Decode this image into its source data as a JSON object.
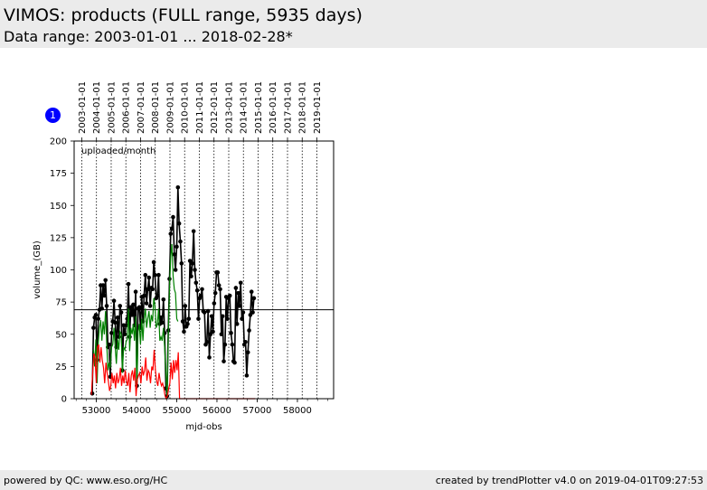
{
  "header": {
    "title": "VIMOS: products (FULL range, 5935 days)",
    "subtitle": "Data range: 2003-01-01 ... 2018-02-28*"
  },
  "footer": {
    "left": "powered by QC: www.eso.org/HC",
    "right": "created by trendPlotter v4.0 on 2019-04-01T09:27:53"
  },
  "marker": {
    "label": "1",
    "color": "#0000ff"
  },
  "chart_data": {
    "type": "line",
    "annotation": "uploaded/month",
    "xlabel": "mjd-obs",
    "ylabel": "volume_(GB)",
    "xlim": [
      52450,
      58900
    ],
    "ylim": [
      0,
      200
    ],
    "grid": "vertical dotted lines at year boundaries",
    "x_ticks": [
      53000,
      54000,
      55000,
      56000,
      57000,
      58000
    ],
    "x_tick_labels": [
      "53000",
      "54000",
      "55000",
      "56000",
      "57000",
      "58000"
    ],
    "y_ticks": [
      0,
      25,
      50,
      75,
      100,
      125,
      150,
      175,
      200
    ],
    "y_tick_labels": [
      "0",
      "25",
      "50",
      "75",
      "100",
      "125",
      "150",
      "175",
      "200"
    ],
    "reference_line": 69,
    "top_axis": {
      "ticks": [
        52640,
        53005,
        53371,
        53736,
        54101,
        54466,
        54832,
        55197,
        55562,
        55927,
        56293,
        56658,
        57023,
        57388,
        57754,
        58119,
        58484
      ],
      "labels": [
        "2003-01-01",
        "2004-01-01",
        "2005-01-01",
        "2006-01-01",
        "2007-01-01",
        "2008-01-01",
        "2009-01-01",
        "2010-01-01",
        "2011-01-01",
        "2012-01-01",
        "2013-01-01",
        "2014-01-01",
        "2015-01-01",
        "2016-01-01",
        "2017-01-01",
        "2018-01-01",
        "2019-01-01"
      ]
    },
    "series": [
      {
        "color": "#000000",
        "marker": "dot",
        "points": [
          [
            52900,
            4
          ],
          [
            52930,
            55
          ],
          [
            52960,
            63
          ],
          [
            52990,
            65
          ],
          [
            53020,
            30
          ],
          [
            53050,
            62
          ],
          [
            53080,
            69
          ],
          [
            53110,
            88
          ],
          [
            53140,
            70
          ],
          [
            53170,
            88
          ],
          [
            53200,
            80
          ],
          [
            53230,
            92
          ],
          [
            53260,
            72
          ],
          [
            53290,
            40
          ],
          [
            53320,
            42
          ],
          [
            53350,
            17
          ],
          [
            53380,
            51
          ],
          [
            53410,
            60
          ],
          [
            53440,
            76
          ],
          [
            53470,
            59
          ],
          [
            53500,
            40
          ],
          [
            53530,
            63
          ],
          [
            53560,
            48
          ],
          [
            53590,
            72
          ],
          [
            53620,
            67
          ],
          [
            53650,
            22
          ],
          [
            53680,
            57
          ],
          [
            53710,
            50
          ],
          [
            53740,
            57
          ],
          [
            53770,
            62
          ],
          [
            53800,
            89
          ],
          [
            53830,
            48
          ],
          [
            53860,
            71
          ],
          [
            53890,
            65
          ],
          [
            53920,
            73
          ],
          [
            53950,
            57
          ],
          [
            53980,
            83
          ],
          [
            54010,
            10
          ],
          [
            54040,
            70
          ],
          [
            54070,
            71
          ],
          [
            54100,
            55
          ],
          [
            54130,
            79
          ],
          [
            54160,
            60
          ],
          [
            54190,
            80
          ],
          [
            54220,
            96
          ],
          [
            54250,
            74
          ],
          [
            54280,
            85
          ],
          [
            54310,
            94
          ],
          [
            54340,
            72
          ],
          [
            54370,
            86
          ],
          [
            54400,
            85
          ],
          [
            54430,
            106
          ],
          [
            54460,
            96
          ],
          [
            54490,
            78
          ],
          [
            54520,
            80
          ],
          [
            54550,
            96
          ],
          [
            54580,
            58
          ],
          [
            54610,
            63
          ],
          [
            54640,
            59
          ],
          [
            54670,
            77
          ],
          [
            54700,
            51
          ],
          [
            54730,
            8
          ],
          [
            54760,
            2
          ],
          [
            54790,
            53
          ],
          [
            54820,
            93
          ],
          [
            54850,
            128
          ],
          [
            54880,
            132
          ],
          [
            54910,
            141
          ],
          [
            54940,
            112
          ],
          [
            54970,
            100
          ],
          [
            55000,
            118
          ],
          [
            55030,
            164
          ],
          [
            55060,
            136
          ],
          [
            55090,
            122
          ],
          [
            55120,
            105
          ],
          [
            55150,
            60
          ],
          [
            55180,
            52
          ],
          [
            55210,
            72
          ],
          [
            55240,
            56
          ],
          [
            55270,
            58
          ],
          [
            55300,
            62
          ],
          [
            55330,
            107
          ],
          [
            55360,
            95
          ],
          [
            55390,
            105
          ],
          [
            55420,
            130
          ],
          [
            55450,
            100
          ],
          [
            55480,
            90
          ],
          [
            55510,
            84
          ],
          [
            55540,
            62
          ],
          [
            55570,
            78
          ],
          [
            55600,
            80
          ],
          [
            55630,
            85
          ],
          [
            55660,
            68
          ],
          [
            55690,
            67
          ],
          [
            55720,
            42
          ],
          [
            55750,
            44
          ],
          [
            55780,
            68
          ],
          [
            55810,
            32
          ],
          [
            55840,
            50
          ],
          [
            55870,
            64
          ],
          [
            55900,
            52
          ],
          [
            55930,
            74
          ],
          [
            55960,
            82
          ],
          [
            55990,
            98
          ],
          [
            56020,
            98
          ],
          [
            56050,
            88
          ],
          [
            56080,
            85
          ],
          [
            56110,
            50
          ],
          [
            56140,
            64
          ],
          [
            56170,
            29
          ],
          [
            56200,
            42
          ],
          [
            56230,
            79
          ],
          [
            56260,
            62
          ],
          [
            56290,
            78
          ],
          [
            56320,
            80
          ],
          [
            56350,
            51
          ],
          [
            56380,
            42
          ],
          [
            56410,
            29
          ],
          [
            56440,
            28
          ],
          [
            56470,
            86
          ],
          [
            56500,
            58
          ],
          [
            56530,
            82
          ],
          [
            56560,
            72
          ],
          [
            56590,
            90
          ],
          [
            56620,
            62
          ],
          [
            56650,
            67
          ],
          [
            56680,
            42
          ],
          [
            56710,
            44
          ],
          [
            56740,
            18
          ],
          [
            56770,
            36
          ],
          [
            56800,
            53
          ],
          [
            56830,
            65
          ],
          [
            56860,
            83
          ],
          [
            56890,
            67
          ],
          [
            56920,
            78
          ]
        ]
      },
      {
        "color": "#008000",
        "marker": "none",
        "points": [
          [
            52930,
            38
          ],
          [
            52960,
            25
          ],
          [
            52990,
            46
          ],
          [
            53020,
            12
          ],
          [
            53050,
            44
          ],
          [
            53080,
            55
          ],
          [
            53110,
            61
          ],
          [
            53140,
            45
          ],
          [
            53170,
            60
          ],
          [
            53200,
            50
          ],
          [
            53230,
            68
          ],
          [
            53260,
            44
          ],
          [
            53290,
            22
          ],
          [
            53320,
            28
          ],
          [
            53350,
            24
          ],
          [
            53380,
            40
          ],
          [
            53410,
            42
          ],
          [
            53440,
            55
          ],
          [
            53470,
            40
          ],
          [
            53500,
            27
          ],
          [
            53530,
            46
          ],
          [
            53560,
            38
          ],
          [
            53590,
            52
          ],
          [
            53620,
            50
          ],
          [
            53650,
            20
          ],
          [
            53680,
            40
          ],
          [
            53710,
            38
          ],
          [
            53740,
            44
          ],
          [
            53770,
            46
          ],
          [
            53800,
            70
          ],
          [
            53830,
            37
          ],
          [
            53860,
            55
          ],
          [
            53890,
            50
          ],
          [
            53920,
            58
          ],
          [
            53950,
            45
          ],
          [
            53980,
            64
          ],
          [
            54010,
            8
          ],
          [
            54040,
            52
          ],
          [
            54070,
            58
          ],
          [
            54100,
            42
          ],
          [
            54130,
            62
          ],
          [
            54160,
            45
          ],
          [
            54190,
            62
          ],
          [
            54220,
            70
          ],
          [
            54250,
            55
          ],
          [
            54280,
            62
          ],
          [
            54310,
            68
          ],
          [
            54340,
            55
          ],
          [
            54370,
            65
          ],
          [
            54400,
            60
          ],
          [
            54430,
            78
          ],
          [
            54460,
            72
          ],
          [
            54490,
            55
          ],
          [
            54520,
            58
          ],
          [
            54550,
            70
          ],
          [
            54580,
            45
          ],
          [
            54610,
            48
          ],
          [
            54640,
            45
          ],
          [
            54670,
            55
          ],
          [
            54700,
            40
          ],
          [
            54760,
            2
          ],
          [
            54790,
            48
          ],
          [
            54820,
            85
          ],
          [
            54850,
            110
          ],
          [
            54880,
            120
          ],
          [
            54910,
            95
          ],
          [
            54940,
            85
          ],
          [
            54970,
            82
          ],
          [
            55000,
            62
          ],
          [
            55030,
            60
          ]
        ]
      },
      {
        "color": "#ff0000",
        "marker": "none",
        "points": [
          [
            52880,
            3
          ],
          [
            52910,
            20
          ],
          [
            52940,
            35
          ],
          [
            52970,
            32
          ],
          [
            53000,
            12
          ],
          [
            53030,
            40
          ],
          [
            53060,
            42
          ],
          [
            53090,
            28
          ],
          [
            53120,
            40
          ],
          [
            53150,
            30
          ],
          [
            53180,
            24
          ],
          [
            53210,
            12
          ],
          [
            53240,
            28
          ],
          [
            53270,
            20
          ],
          [
            53300,
            14
          ],
          [
            53330,
            6
          ],
          [
            53360,
            10
          ],
          [
            53390,
            20
          ],
          [
            53420,
            12
          ],
          [
            53450,
            18
          ],
          [
            53480,
            8
          ],
          [
            53510,
            20
          ],
          [
            53540,
            12
          ],
          [
            53570,
            15
          ],
          [
            53600,
            24
          ],
          [
            53630,
            10
          ],
          [
            53660,
            18
          ],
          [
            53690,
            12
          ],
          [
            53720,
            22
          ],
          [
            53750,
            14
          ],
          [
            53780,
            10
          ],
          [
            53810,
            20
          ],
          [
            53840,
            5
          ],
          [
            53870,
            18
          ],
          [
            53900,
            22
          ],
          [
            53930,
            14
          ],
          [
            53960,
            24
          ],
          [
            53990,
            2
          ],
          [
            54020,
            15
          ],
          [
            54050,
            18
          ],
          [
            54080,
            20
          ],
          [
            54110,
            12
          ],
          [
            54140,
            25
          ],
          [
            54170,
            18
          ],
          [
            54200,
            22
          ],
          [
            54230,
            32
          ],
          [
            54260,
            14
          ],
          [
            54290,
            22
          ],
          [
            54320,
            20
          ],
          [
            54350,
            12
          ],
          [
            54380,
            25
          ],
          [
            54410,
            22
          ],
          [
            54440,
            38
          ],
          [
            54470,
            22
          ],
          [
            54500,
            14
          ],
          [
            54530,
            10
          ],
          [
            54560,
            20
          ],
          [
            54590,
            14
          ],
          [
            54620,
            10
          ],
          [
            54650,
            12
          ],
          [
            54680,
            8
          ],
          [
            54710,
            2
          ],
          [
            54740,
            0
          ],
          [
            54770,
            2
          ],
          [
            54800,
            8
          ],
          [
            54830,
            12
          ],
          [
            54860,
            28
          ],
          [
            54890,
            15
          ],
          [
            54920,
            30
          ],
          [
            54950,
            20
          ],
          [
            54980,
            30
          ],
          [
            55010,
            22
          ],
          [
            55040,
            36
          ],
          [
            55070,
            0
          ],
          [
            55200,
            0
          ],
          [
            55400,
            0
          ],
          [
            55600,
            0
          ],
          [
            55800,
            0
          ],
          [
            56000,
            0
          ],
          [
            56200,
            0
          ],
          [
            56400,
            0
          ],
          [
            56600,
            0
          ],
          [
            56800,
            0
          ],
          [
            56950,
            0
          ]
        ]
      }
    ]
  }
}
